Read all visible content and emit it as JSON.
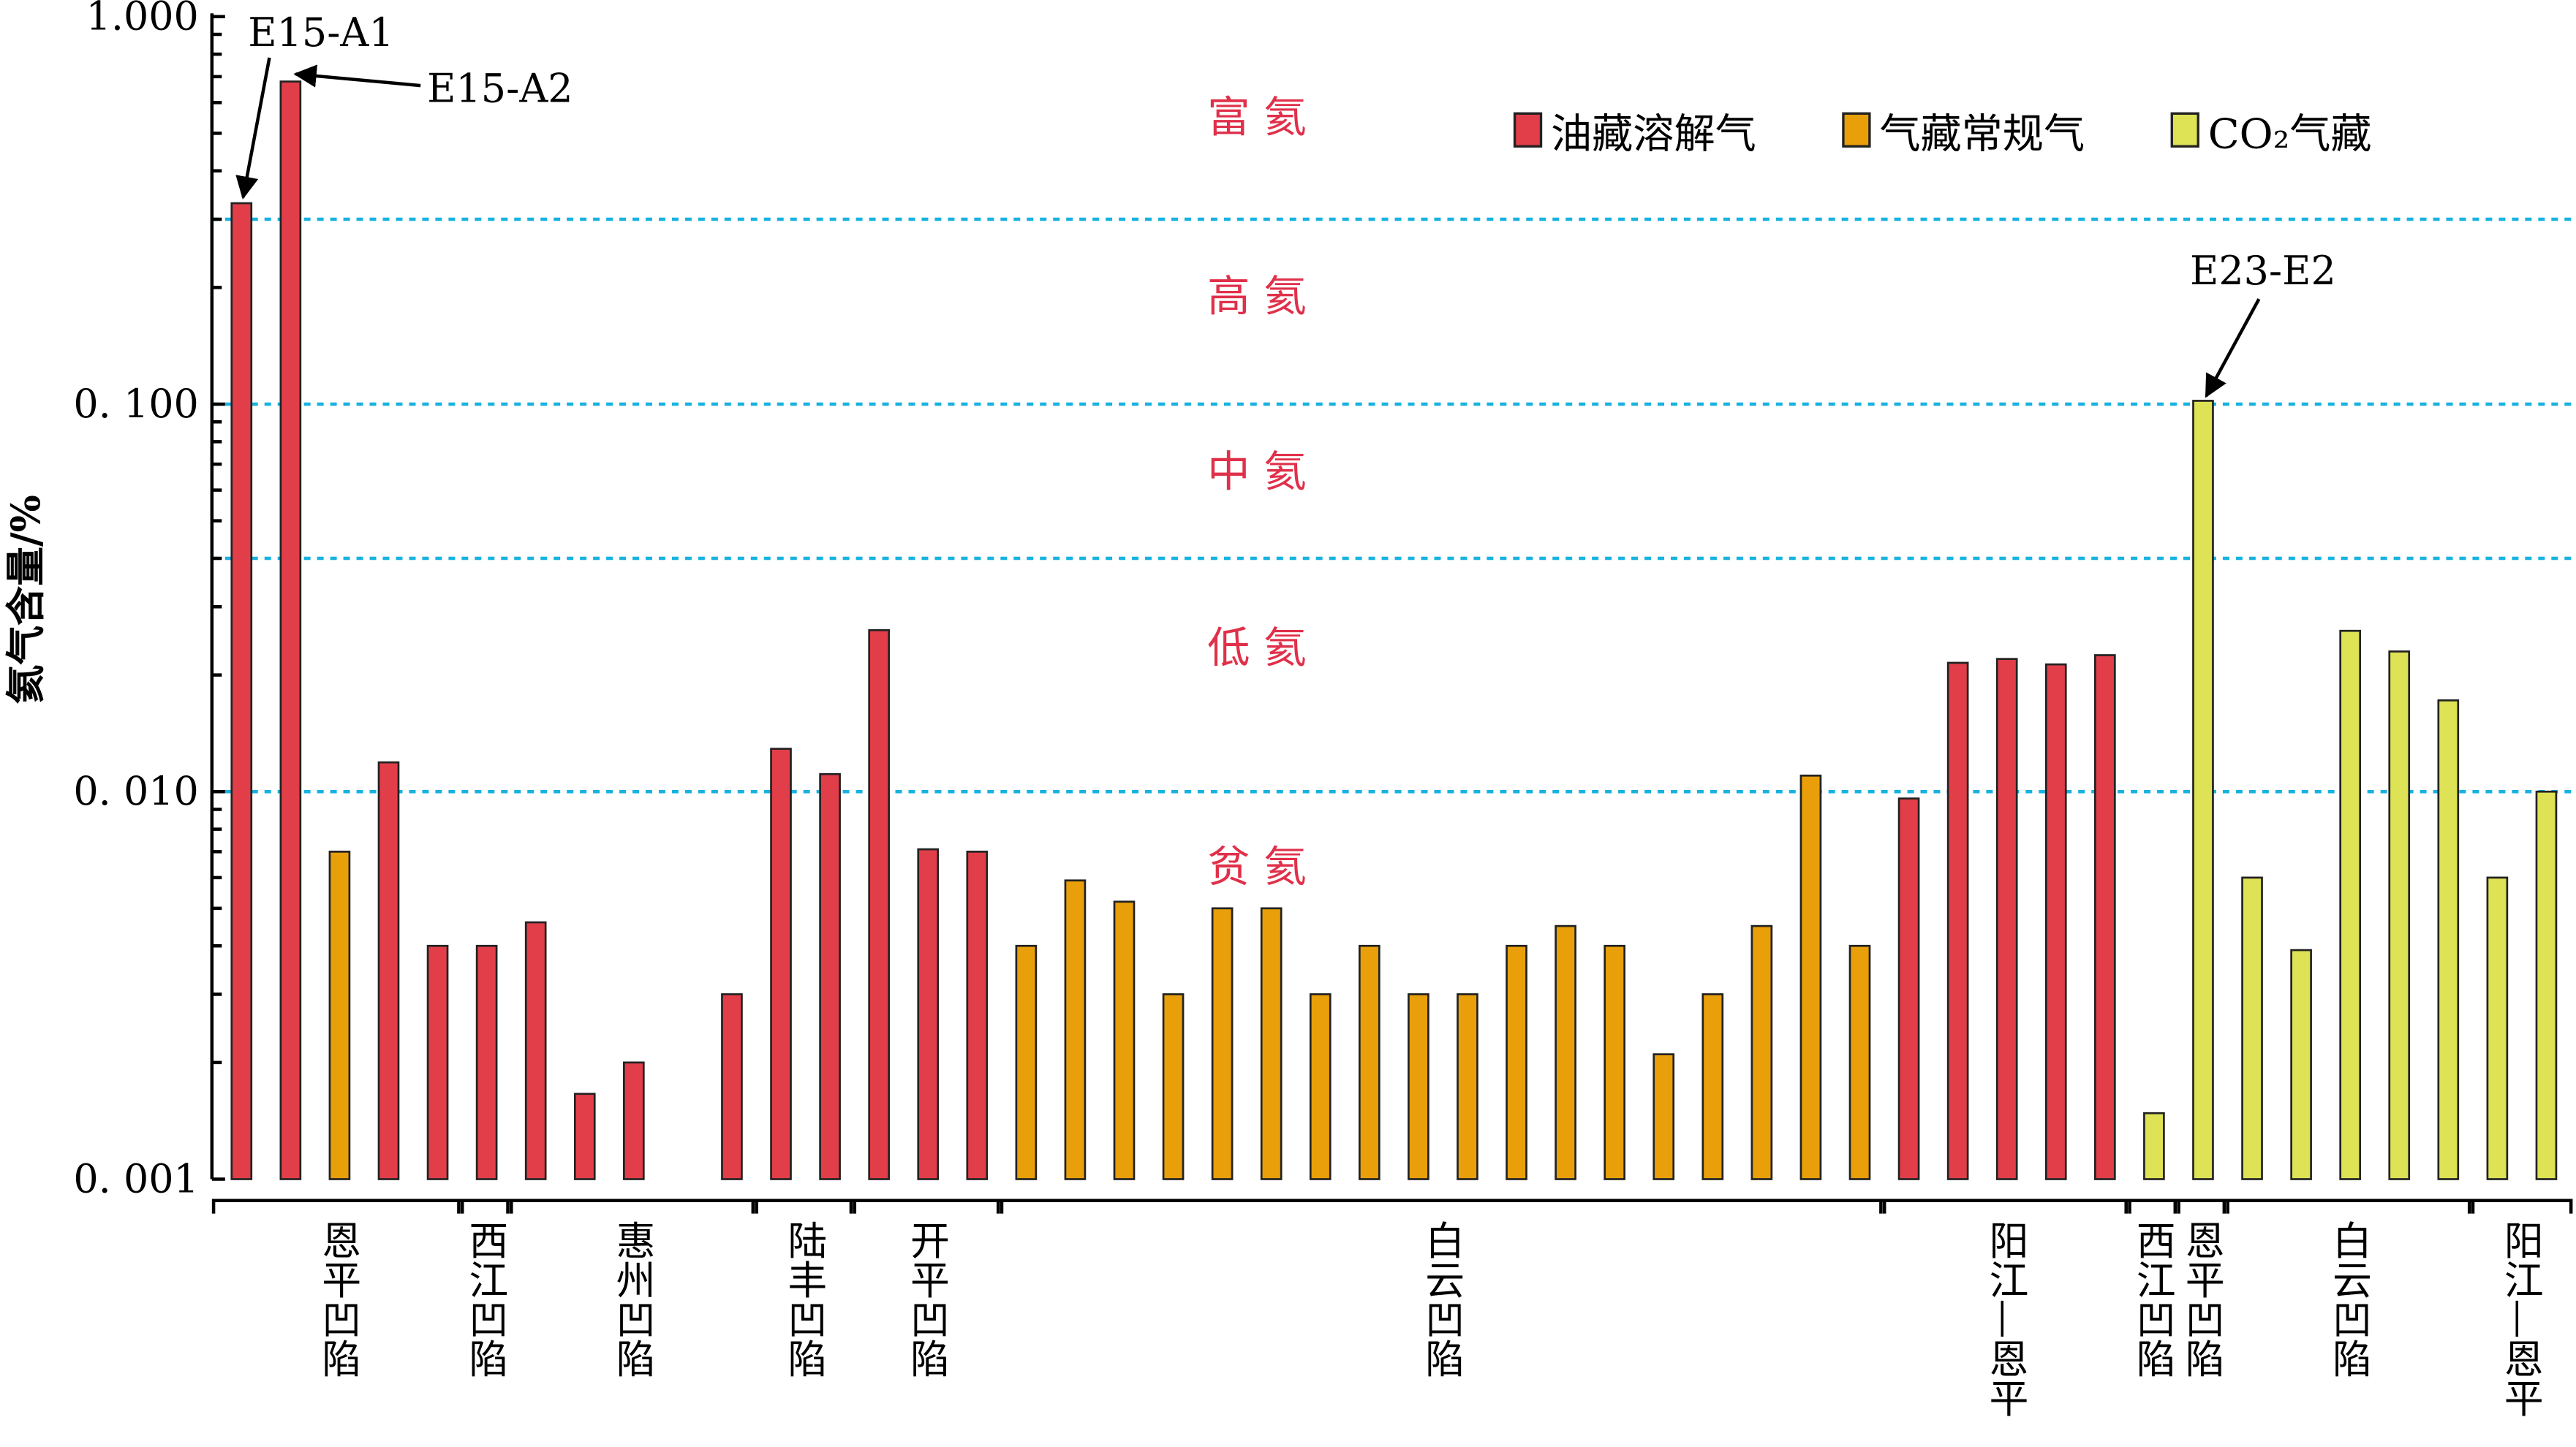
{
  "chart_data": {
    "type": "bar",
    "y_scale": "log",
    "ylim": [
      0.001,
      1.0
    ],
    "ylabel": "氦气含量/%",
    "y_ticks": [
      {
        "value": 1.0,
        "label": "1.000"
      },
      {
        "value": 0.1,
        "label": "0. 100"
      },
      {
        "value": 0.01,
        "label": "0. 010"
      },
      {
        "value": 0.001,
        "label": "0. 001"
      }
    ],
    "legend_position": "top-right",
    "series": [
      {
        "key": "oil",
        "name": "油藏溶解气",
        "color": "#E23E4A"
      },
      {
        "key": "gas",
        "name": "气藏常规气",
        "color": "#E89F0A"
      },
      {
        "key": "co2",
        "name": "CO₂气藏",
        "color": "#DEE255"
      }
    ],
    "bars": [
      {
        "slot": 0,
        "series": "oil",
        "value": 0.33
      },
      {
        "slot": 1,
        "series": "oil",
        "value": 0.68
      },
      {
        "slot": 2,
        "series": "gas",
        "value": 0.007
      },
      {
        "slot": 3,
        "series": "oil",
        "value": 0.0119
      },
      {
        "slot": 4,
        "series": "oil",
        "value": 0.004
      },
      {
        "slot": 5,
        "series": "oil",
        "value": 0.004
      },
      {
        "slot": 6,
        "series": "oil",
        "value": 0.0046
      },
      {
        "slot": 7,
        "series": "oil",
        "value": 0.00166
      },
      {
        "slot": 8,
        "series": "oil",
        "value": 0.002
      },
      {
        "slot": 10,
        "series": "oil",
        "value": 0.003
      },
      {
        "slot": 11,
        "series": "oil",
        "value": 0.0129
      },
      {
        "slot": 12,
        "series": "oil",
        "value": 0.0111
      },
      {
        "slot": 13,
        "series": "oil",
        "value": 0.0261
      },
      {
        "slot": 14,
        "series": "oil",
        "value": 0.0071
      },
      {
        "slot": 15,
        "series": "oil",
        "value": 0.007
      },
      {
        "slot": 16,
        "series": "gas",
        "value": 0.004
      },
      {
        "slot": 17,
        "series": "gas",
        "value": 0.0059
      },
      {
        "slot": 18,
        "series": "gas",
        "value": 0.0052
      },
      {
        "slot": 19,
        "series": "gas",
        "value": 0.003
      },
      {
        "slot": 20,
        "series": "gas",
        "value": 0.005
      },
      {
        "slot": 21,
        "series": "gas",
        "value": 0.005
      },
      {
        "slot": 22,
        "series": "gas",
        "value": 0.003
      },
      {
        "slot": 23,
        "series": "gas",
        "value": 0.004
      },
      {
        "slot": 24,
        "series": "gas",
        "value": 0.003
      },
      {
        "slot": 25,
        "series": "gas",
        "value": 0.003
      },
      {
        "slot": 26,
        "series": "gas",
        "value": 0.004
      },
      {
        "slot": 27,
        "series": "gas",
        "value": 0.0045
      },
      {
        "slot": 28,
        "series": "gas",
        "value": 0.004
      },
      {
        "slot": 29,
        "series": "gas",
        "value": 0.0021
      },
      {
        "slot": 30,
        "series": "gas",
        "value": 0.003
      },
      {
        "slot": 31,
        "series": "gas",
        "value": 0.0045
      },
      {
        "slot": 32,
        "series": "gas",
        "value": 0.011
      },
      {
        "slot": 33,
        "series": "gas",
        "value": 0.004
      },
      {
        "slot": 34,
        "series": "oil",
        "value": 0.0096
      },
      {
        "slot": 35,
        "series": "oil",
        "value": 0.0215
      },
      {
        "slot": 36,
        "series": "oil",
        "value": 0.022
      },
      {
        "slot": 37,
        "series": "oil",
        "value": 0.0213
      },
      {
        "slot": 38,
        "series": "oil",
        "value": 0.0225
      },
      {
        "slot": 39,
        "series": "co2",
        "value": 0.00148
      },
      {
        "slot": 40,
        "series": "co2",
        "value": 0.102
      },
      {
        "slot": 41,
        "series": "co2",
        "value": 0.006
      },
      {
        "slot": 42,
        "series": "co2",
        "value": 0.0039
      },
      {
        "slot": 43,
        "series": "co2",
        "value": 0.026
      },
      {
        "slot": 44,
        "series": "co2",
        "value": 0.023
      },
      {
        "slot": 45,
        "series": "co2",
        "value": 0.0172
      },
      {
        "slot": 46,
        "series": "co2",
        "value": 0.006
      },
      {
        "slot": 47,
        "series": "co2",
        "value": 0.01
      }
    ],
    "slot_count": 48,
    "groups": [
      {
        "label": "恩平凹陷",
        "from": 0,
        "to": 4
      },
      {
        "label": "西江凹陷",
        "from": 5,
        "to": 5
      },
      {
        "label": "惠州凹陷",
        "from": 6,
        "to": 10
      },
      {
        "label": "陆丰凹陷",
        "from": 11,
        "to": 12
      },
      {
        "label": "开平凹陷",
        "from": 13,
        "to": 15
      },
      {
        "label": "白云凹陷",
        "from": 16,
        "to": 33
      },
      {
        "label": "阳江—恩平",
        "from": 34,
        "to": 38
      },
      {
        "label": "西江凹陷",
        "from": 39,
        "to": 39
      },
      {
        "label": "恩平凹陷",
        "from": 40,
        "to": 40
      },
      {
        "label": "白云凹陷",
        "from": 41,
        "to": 45
      },
      {
        "label": "阳江—恩平",
        "from": 46,
        "to": 47
      }
    ],
    "thresholds": {
      "values": [
        0.3,
        0.1,
        0.04,
        0.01
      ],
      "color": "#17B2E0"
    },
    "zones": [
      {
        "label": "富 氦",
        "value": 0.55
      },
      {
        "label": "高 氦",
        "value": 0.19
      },
      {
        "label": "中 氦",
        "value": 0.067
      },
      {
        "label": "低 氦",
        "value": 0.0235
      },
      {
        "label": "贫 氦",
        "value": 0.0064
      }
    ],
    "zone_color": "#E0304A",
    "annotations": [
      {
        "text": "E15-A1",
        "slot": 0
      },
      {
        "text": "E15-A2",
        "slot": 1
      },
      {
        "text": "E23-E2",
        "slot": 40
      }
    ]
  }
}
